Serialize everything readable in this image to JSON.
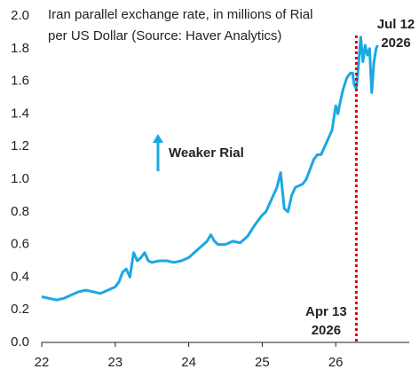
{
  "chart_data": {
    "type": "line",
    "title": [
      "Iran parallel exchange rate, in millions of Rial",
      "per US Dollar (Source: Haver Analytics)"
    ],
    "annotations": {
      "weaker": "Weaker Rial",
      "start": [
        "Apr 13",
        "2026"
      ],
      "end": [
        "Jul 12",
        "2026"
      ]
    },
    "vline": 26.28,
    "vline_color": "#e00000",
    "series": [
      {
        "name": "Iran parallel exchange rate",
        "color": "#1aa8e4",
        "x": [
          22.0,
          22.1,
          22.2,
          22.3,
          22.4,
          22.5,
          22.6,
          22.7,
          22.8,
          22.9,
          23.0,
          23.05,
          23.1,
          23.15,
          23.2,
          23.25,
          23.3,
          23.35,
          23.4,
          23.45,
          23.5,
          23.6,
          23.7,
          23.8,
          23.9,
          24.0,
          24.1,
          24.2,
          24.25,
          24.3,
          24.35,
          24.4,
          24.5,
          24.6,
          24.7,
          24.8,
          24.9,
          25.0,
          25.05,
          25.1,
          25.15,
          25.2,
          25.25,
          25.3,
          25.35,
          25.4,
          25.45,
          25.5,
          25.55,
          25.6,
          25.65,
          25.7,
          25.75,
          25.8,
          25.85,
          25.9,
          25.95,
          26.0,
          26.03,
          26.05,
          26.1,
          26.15,
          26.2,
          26.23,
          26.25,
          26.28,
          26.31,
          26.34,
          26.37,
          26.4,
          26.43,
          26.46,
          26.49,
          26.52,
          26.55,
          26.57
        ],
        "values": [
          0.28,
          0.27,
          0.26,
          0.27,
          0.29,
          0.31,
          0.32,
          0.31,
          0.3,
          0.32,
          0.34,
          0.37,
          0.43,
          0.45,
          0.4,
          0.55,
          0.5,
          0.52,
          0.55,
          0.5,
          0.49,
          0.5,
          0.5,
          0.49,
          0.5,
          0.52,
          0.56,
          0.6,
          0.62,
          0.66,
          0.62,
          0.6,
          0.6,
          0.62,
          0.61,
          0.65,
          0.72,
          0.78,
          0.8,
          0.85,
          0.9,
          0.95,
          1.04,
          0.82,
          0.8,
          0.9,
          0.95,
          0.96,
          0.97,
          1.0,
          1.06,
          1.12,
          1.15,
          1.15,
          1.2,
          1.25,
          1.3,
          1.45,
          1.4,
          1.45,
          1.55,
          1.62,
          1.65,
          1.65,
          1.58,
          1.55,
          1.7,
          1.87,
          1.72,
          1.82,
          1.76,
          1.8,
          1.53,
          1.72,
          1.8,
          1.82
        ]
      }
    ],
    "xlim": [
      22,
      27
    ],
    "xticks": [
      22,
      23,
      24,
      25,
      26
    ],
    "ylim": [
      0,
      2
    ],
    "yticks": [
      {
        "value": 0,
        "label": "0.0"
      },
      0.2,
      0.4,
      0.6,
      0.8,
      {
        "value": 1,
        "label": "1.0"
      },
      1.2,
      1.4,
      1.6,
      1.8,
      {
        "value": 2,
        "label": "2.0"
      }
    ]
  }
}
